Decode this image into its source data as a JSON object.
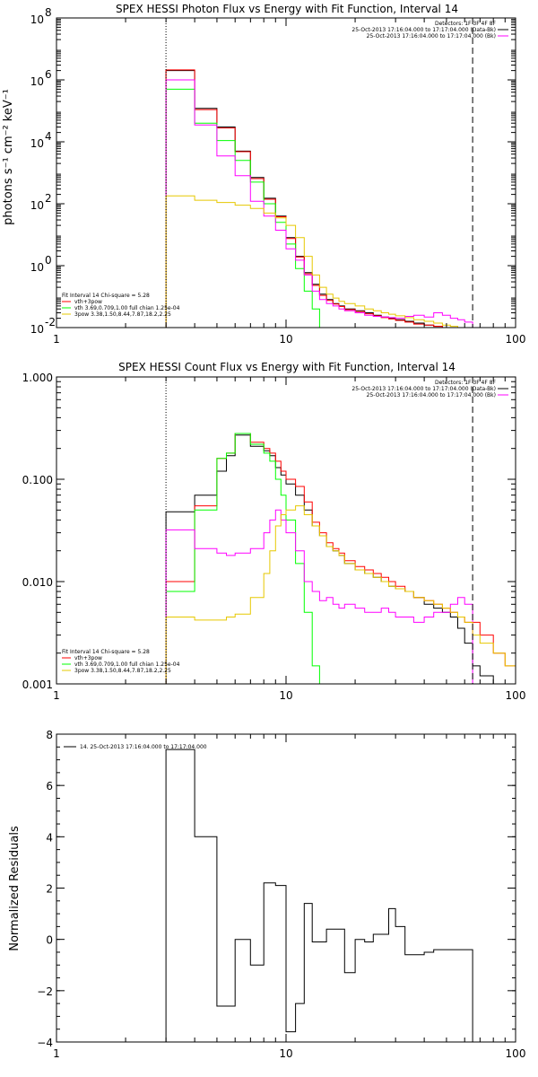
{
  "chart_data": [
    {
      "type": "line",
      "title": "SPEX HESSI Photon Flux vs Energy with Fit Function, Interval 14",
      "xlabel": "",
      "ylabel": "photons s⁻¹ cm⁻² keV⁻¹",
      "xscale": "log",
      "yscale": "log",
      "xlim": [
        1,
        100
      ],
      "ylim": [
        0.01,
        100000000
      ],
      "xticks": [
        "1",
        "10",
        "100"
      ],
      "yticks": [
        {
          "base": "10",
          "exp": "-2",
          "value": 0.01
        },
        {
          "base": "10",
          "exp": "0",
          "value": 1
        },
        {
          "base": "10",
          "exp": "2",
          "value": 100
        },
        {
          "base": "10",
          "exp": "4",
          "value": 10000
        },
        {
          "base": "10",
          "exp": "6",
          "value": 1000000
        },
        {
          "base": "10",
          "exp": "8",
          "value": 100000000
        }
      ],
      "vlines": [
        {
          "x": 3,
          "style": "dotted"
        },
        {
          "x": 65,
          "style": "dashed"
        }
      ],
      "legend_top": [
        {
          "text": "Detectors: 1F 3F 4F 8F",
          "color": "#000000"
        },
        {
          "text": "25-Oct-2013 17:16:04.000 to 17:17:04.000 (Data-Bk)",
          "color": "#000000"
        },
        {
          "text": "25-Oct-2013 17:16:04.000 to 17:17:04.000 (Bk)",
          "color": "#ff00ff"
        }
      ],
      "legend_bottom": [
        {
          "text": "Fit Interval 14   Chi-square = 5.28",
          "color": "#000000"
        },
        {
          "text": "vth+3pow",
          "color": "#ff0000"
        },
        {
          "text": "vth 3.69,0.709,1.00  full chian 1.25e-04",
          "color": "#00ff00"
        },
        {
          "text": "3pow 3.38,1.50,8.44,7.87,18.2,2.25",
          "color": "#e6c800"
        }
      ],
      "edges": [
        3,
        3.5,
        4,
        4.5,
        5,
        5.5,
        6,
        6.5,
        7,
        7.5,
        8,
        8.5,
        9,
        9.5,
        10,
        11,
        12,
        13,
        14,
        15,
        16,
        17,
        18,
        20,
        22,
        24,
        26,
        28,
        30,
        33,
        36,
        40,
        44,
        48,
        52,
        56,
        60,
        65
      ],
      "series": [
        {
          "color": "#000000",
          "values": [
            2000000,
            2000000,
            120000,
            120000,
            30000,
            30000,
            5000,
            5000,
            700,
            700,
            150,
            150,
            40,
            40,
            8,
            2,
            0.6,
            0.25,
            0.12,
            0.08,
            0.06,
            0.05,
            0.04,
            0.035,
            0.03,
            0.025,
            0.022,
            0.02,
            0.018,
            0.016,
            0.014,
            0.012,
            0.011,
            0.01,
            0.009,
            0.008,
            0.007
          ]
        },
        {
          "color": "#ff0000",
          "values": [
            2100000,
            2100000,
            110000,
            110000,
            28000,
            28000,
            4800,
            4800,
            650,
            650,
            140,
            140,
            38,
            38,
            7.5,
            1.9,
            0.55,
            0.23,
            0.11,
            0.075,
            0.058,
            0.048,
            0.038,
            0.033,
            0.028,
            0.024,
            0.021,
            0.019,
            0.017,
            0.015,
            0.013,
            0.012,
            0.011,
            0.01,
            0.009,
            0.008,
            0.007
          ]
        },
        {
          "color": "#00ff00",
          "values": [
            500000,
            500000,
            40000,
            40000,
            11000,
            11000,
            2500,
            2500,
            500,
            500,
            100,
            100,
            25,
            25,
            5,
            0.8,
            0.15,
            0.04,
            0.01,
            0.005,
            0.005,
            0.005,
            0.005,
            0.005,
            0.005,
            0.005,
            0.005,
            0.005,
            0.005,
            0.005,
            0.005,
            0.005,
            0.005,
            0.005,
            0.005,
            0.005,
            0.005
          ]
        },
        {
          "color": "#ff00ff",
          "values": [
            1000000,
            1000000,
            35000,
            35000,
            3500,
            3500,
            800,
            800,
            120,
            120,
            40,
            40,
            14,
            14,
            3.5,
            1.5,
            0.5,
            0.15,
            0.08,
            0.06,
            0.05,
            0.04,
            0.035,
            0.03,
            0.025,
            0.023,
            0.022,
            0.021,
            0.02,
            0.023,
            0.025,
            0.022,
            0.03,
            0.025,
            0.02,
            0.018,
            0.015
          ]
        },
        {
          "color": "#e6c800",
          "values": [
            180,
            180,
            130,
            130,
            110,
            110,
            90,
            90,
            70,
            70,
            50,
            50,
            35,
            35,
            20,
            8,
            2,
            0.5,
            0.2,
            0.12,
            0.09,
            0.07,
            0.06,
            0.05,
            0.04,
            0.035,
            0.03,
            0.027,
            0.024,
            0.021,
            0.018,
            0.016,
            0.014,
            0.012,
            0.011,
            0.01,
            0.008
          ]
        }
      ]
    },
    {
      "type": "line",
      "title": "SPEX HESSI Count Flux vs Energy with Fit Function, Interval 14",
      "xlabel": "",
      "ylabel": "",
      "xscale": "log",
      "yscale": "log",
      "xlim": [
        1,
        100
      ],
      "ylim": [
        0.001,
        1
      ],
      "xticks": [
        "1",
        "10",
        "100"
      ],
      "yticks": [
        {
          "label": "0.001",
          "value": 0.001
        },
        {
          "label": "0.010",
          "value": 0.01
        },
        {
          "label": "0.100",
          "value": 0.1
        },
        {
          "label": "1.000",
          "value": 1
        }
      ],
      "vlines": [
        {
          "x": 3,
          "style": "dotted"
        },
        {
          "x": 65,
          "style": "dashed"
        }
      ],
      "legend_top": [
        {
          "text": "Detectors: 1F 3F 4F 8F",
          "color": "#000000"
        },
        {
          "text": "25-Oct-2013 17:16:04.000 to 17:17:04.000 (Data-Bk)",
          "color": "#000000"
        },
        {
          "text": "25-Oct-2013 17:16:04.000 to 17:17:04.000 (Bk)",
          "color": "#ff00ff"
        }
      ],
      "legend_bottom": [
        {
          "text": "Fit Interval 14   Chi-square = 5.28",
          "color": "#000000"
        },
        {
          "text": "vth+3pow",
          "color": "#ff0000"
        },
        {
          "text": "vth 3.69,0.709,1.00  full chian 1.25e-04",
          "color": "#00ff00"
        },
        {
          "text": "3pow 3.38,1.50,8.44,7.87,18.2,2.25",
          "color": "#e6c800"
        }
      ],
      "edges": [
        3,
        3.5,
        4,
        4.5,
        5,
        5.5,
        6,
        6.5,
        7,
        7.5,
        8,
        8.5,
        9,
        9.5,
        10,
        11,
        12,
        13,
        14,
        15,
        16,
        17,
        18,
        20,
        22,
        24,
        26,
        28,
        30,
        33,
        36,
        40,
        44,
        48,
        52,
        56,
        60,
        65,
        70,
        80,
        90,
        100
      ],
      "series": [
        {
          "color": "#000000",
          "values": [
            0.048,
            0.048,
            0.07,
            0.07,
            0.12,
            0.17,
            0.27,
            0.27,
            0.21,
            0.21,
            0.19,
            0.17,
            0.13,
            0.11,
            0.09,
            0.07,
            0.05,
            0.035,
            0.028,
            0.022,
            0.02,
            0.018,
            0.015,
            0.013,
            0.012,
            0.011,
            0.01,
            0.009,
            0.0085,
            0.008,
            0.007,
            0.006,
            0.0055,
            0.005,
            0.0045,
            0.0035,
            0.0025,
            0.0015,
            0.0012,
            0.001,
            0.001
          ]
        },
        {
          "color": "#ff0000",
          "values": [
            0.01,
            0.01,
            0.055,
            0.055,
            0.16,
            0.18,
            0.28,
            0.28,
            0.23,
            0.23,
            0.2,
            0.18,
            0.15,
            0.12,
            0.1,
            0.085,
            0.06,
            0.038,
            0.03,
            0.024,
            0.021,
            0.019,
            0.016,
            0.014,
            0.013,
            0.012,
            0.011,
            0.01,
            0.009,
            0.008,
            0.007,
            0.0065,
            0.006,
            0.0055,
            0.005,
            0.0045,
            0.004,
            0.004,
            0.003,
            0.002,
            0.0015
          ]
        },
        {
          "color": "#00ff00",
          "values": [
            0.008,
            0.008,
            0.05,
            0.05,
            0.16,
            0.18,
            0.28,
            0.28,
            0.22,
            0.22,
            0.18,
            0.15,
            0.1,
            0.07,
            0.04,
            0.015,
            0.005,
            0.0015,
            0.0008,
            0.0008,
            0.0008,
            0.0008,
            0.0008,
            0.0008,
            0.0008,
            0.0008,
            0.0008,
            0.0008,
            0.0008,
            0.0008,
            0.0008,
            0.0008,
            0.0008,
            0.0008,
            0.0008,
            0.0008,
            0.0008,
            0.0008,
            0.0008,
            0.0008,
            0.0008
          ]
        },
        {
          "color": "#ff00ff",
          "values": [
            0.032,
            0.032,
            0.021,
            0.021,
            0.019,
            0.018,
            0.019,
            0.019,
            0.021,
            0.021,
            0.03,
            0.04,
            0.05,
            0.04,
            0.03,
            0.02,
            0.01,
            0.008,
            0.0065,
            0.007,
            0.006,
            0.0055,
            0.006,
            0.0055,
            0.005,
            0.005,
            0.0055,
            0.005,
            0.0045,
            0.0045,
            0.004,
            0.0045,
            0.005,
            0.005,
            0.006,
            0.007,
            0.006,
            0.001,
            0.001,
            0.001,
            0.001
          ]
        },
        {
          "color": "#e6c800",
          "values": [
            0.0045,
            0.0045,
            0.0042,
            0.0042,
            0.0042,
            0.0045,
            0.0048,
            0.0048,
            0.007,
            0.007,
            0.012,
            0.02,
            0.035,
            0.045,
            0.05,
            0.055,
            0.045,
            0.035,
            0.028,
            0.022,
            0.02,
            0.018,
            0.015,
            0.013,
            0.012,
            0.011,
            0.01,
            0.009,
            0.0085,
            0.008,
            0.007,
            0.0065,
            0.006,
            0.0055,
            0.005,
            0.0045,
            0.004,
            0.003,
            0.0025,
            0.002,
            0.0015
          ]
        }
      ]
    },
    {
      "type": "line",
      "title": "",
      "xlabel": "",
      "ylabel": "Normalized Residuals",
      "xscale": "log",
      "yscale": "linear",
      "xlim": [
        1,
        100
      ],
      "ylim": [
        -4,
        8
      ],
      "xticks": [
        "1",
        "10",
        "100"
      ],
      "yticks": [
        {
          "label": "−4",
          "value": -4
        },
        {
          "label": "−2",
          "value": -2
        },
        {
          "label": "0",
          "value": 0
        },
        {
          "label": "2",
          "value": 2
        },
        {
          "label": "4",
          "value": 4
        },
        {
          "label": "6",
          "value": 6
        },
        {
          "label": "8",
          "value": 8
        }
      ],
      "legend_top": [
        {
          "text": "14. 25-Oct-2013 17:16:04.000 to 17:17:04.000",
          "color": "#000000"
        }
      ],
      "edges": [
        3,
        3.5,
        4,
        4.5,
        5,
        5.5,
        6,
        6.5,
        7,
        7.5,
        8,
        8.5,
        9,
        9.5,
        10,
        11,
        12,
        13,
        14,
        15,
        16,
        17,
        18,
        20,
        22,
        24,
        26,
        28,
        30,
        33,
        36,
        40,
        44,
        48,
        52,
        56,
        60,
        65
      ],
      "series": [
        {
          "color": "#000000",
          "values": [
            7.4,
            7.4,
            4.0,
            4.0,
            -2.6,
            -2.6,
            0.0,
            0.0,
            -1.0,
            -1.0,
            2.2,
            2.2,
            2.1,
            2.1,
            -3.6,
            -2.5,
            1.4,
            -0.1,
            -0.1,
            0.4,
            0.4,
            0.4,
            -1.3,
            0.0,
            -0.1,
            0.2,
            0.2,
            1.2,
            0.5,
            -0.6,
            -0.6,
            -0.5,
            -0.4,
            -0.4,
            -0.4,
            -0.4,
            -0.4
          ]
        }
      ]
    }
  ]
}
